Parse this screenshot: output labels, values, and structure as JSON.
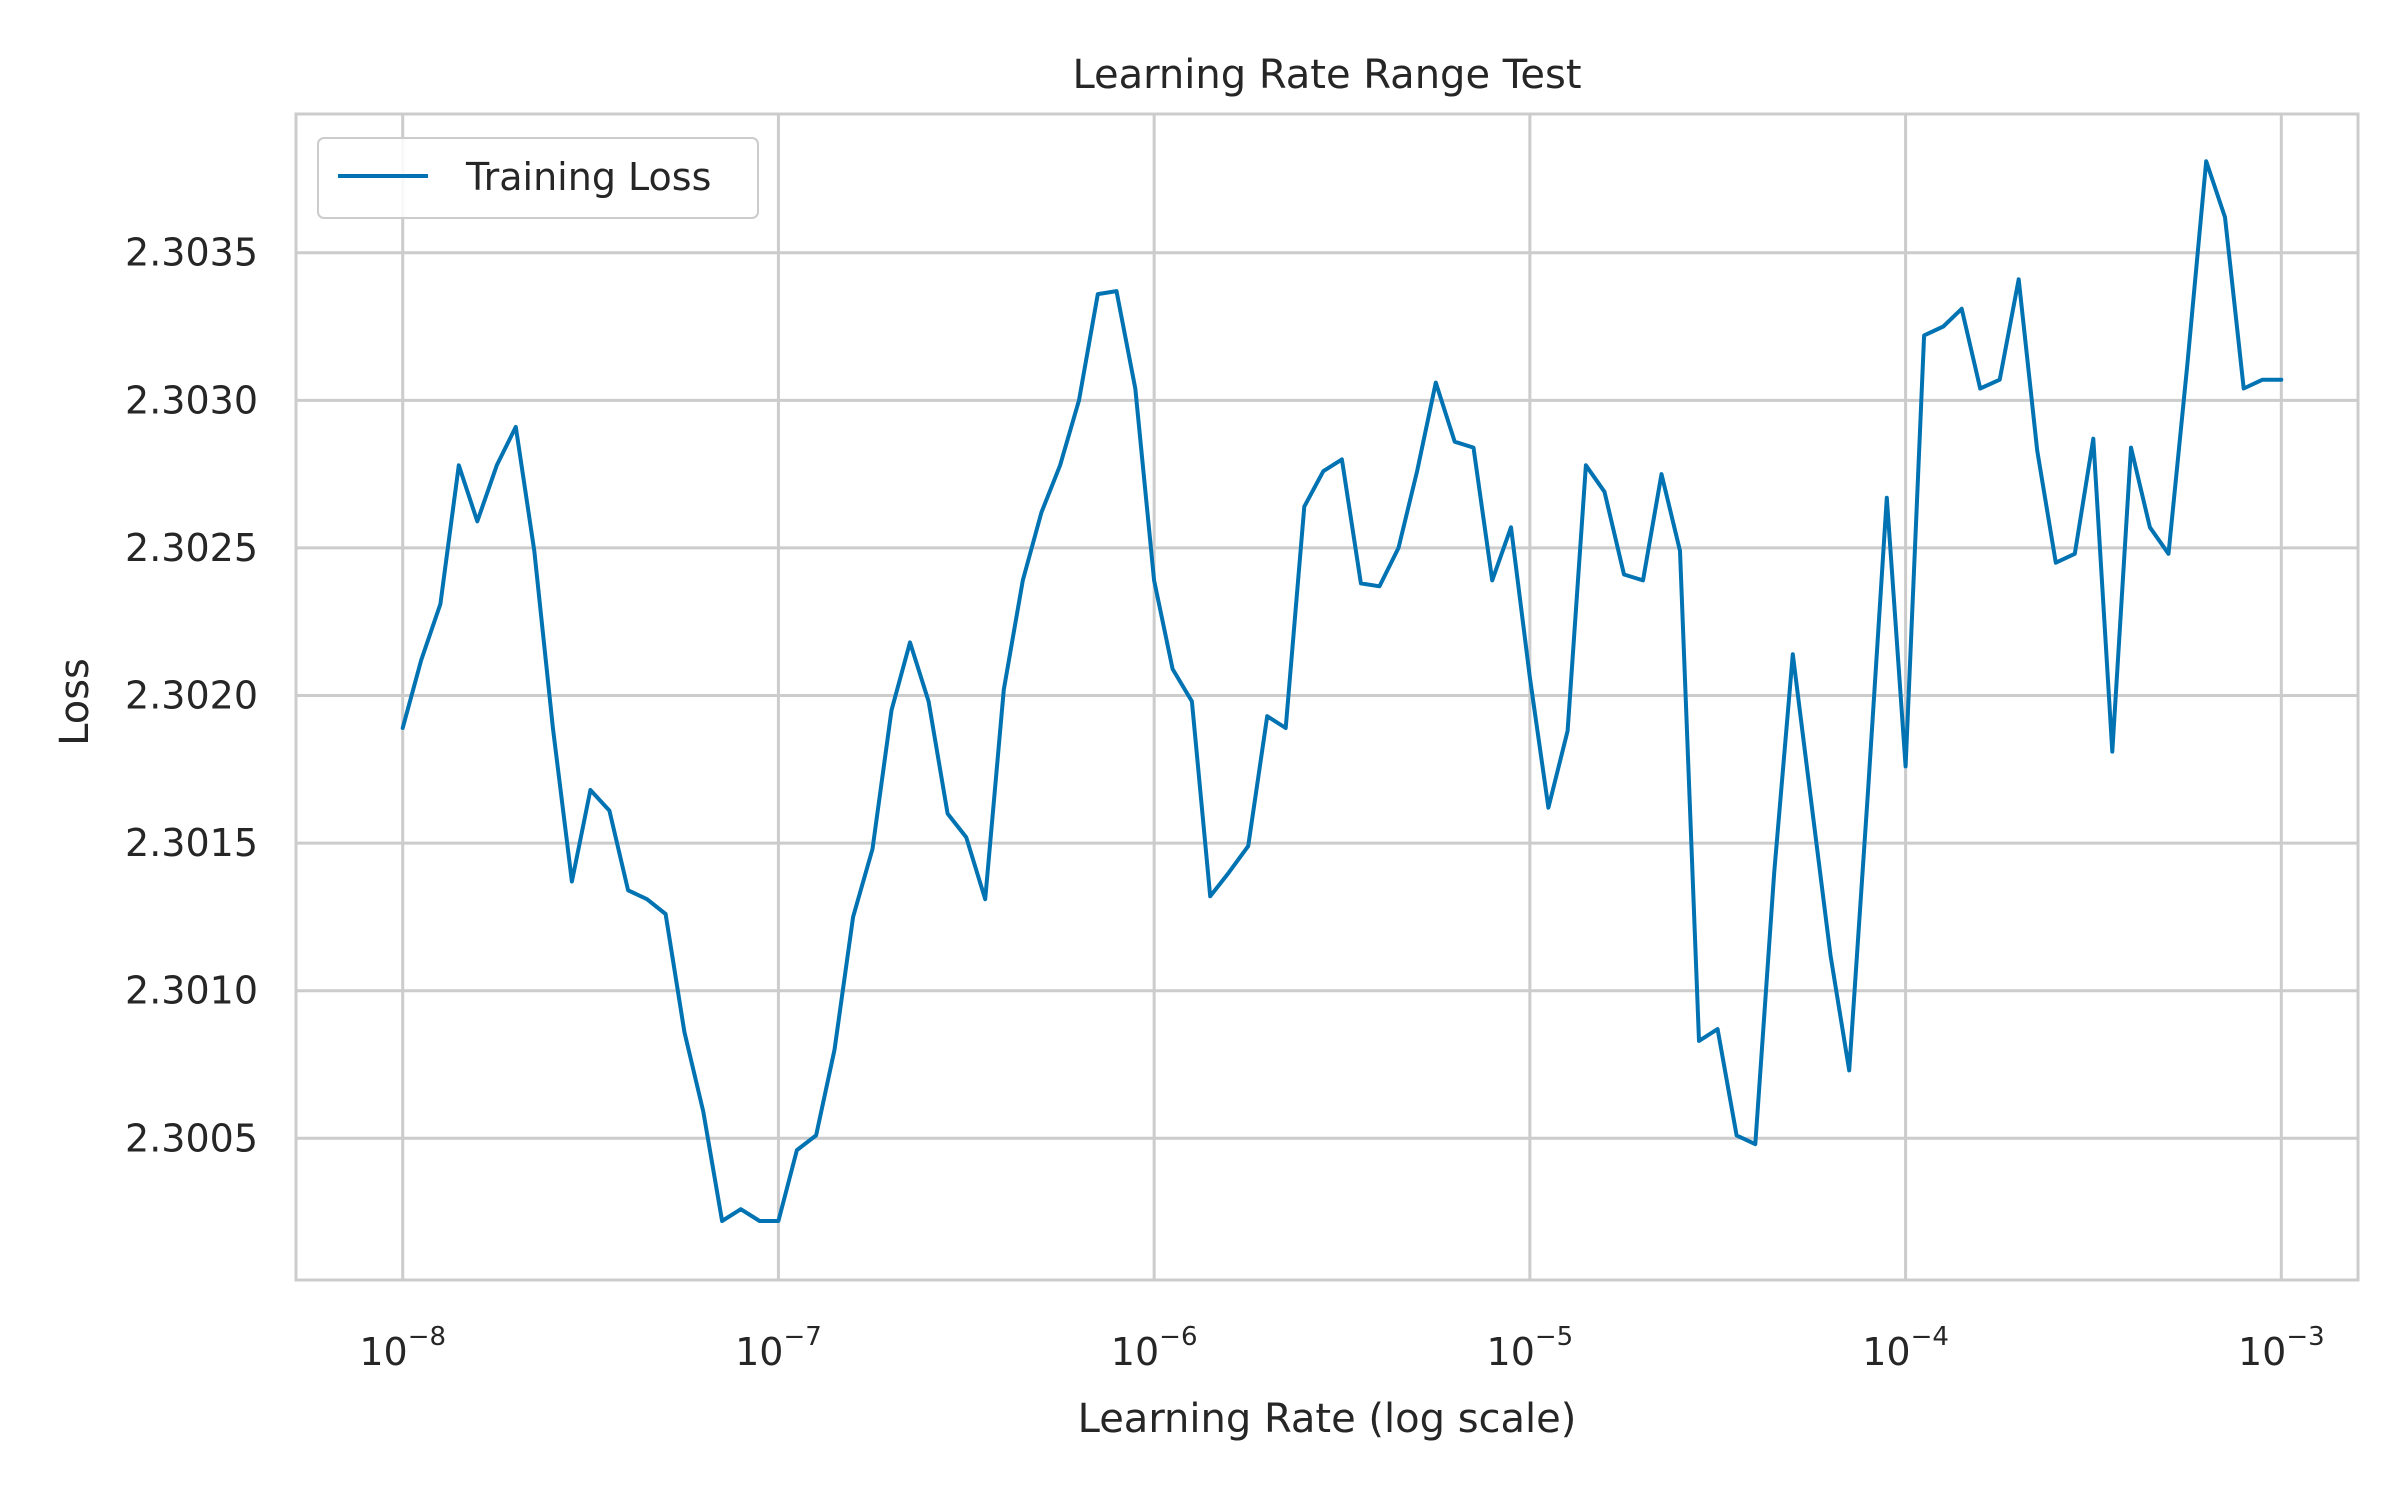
{
  "chart_data": {
    "type": "line",
    "title": "Learning Rate Range Test",
    "xlabel": "Learning Rate (log scale)",
    "ylabel": "Loss",
    "x_scale": "log",
    "xlim": [
      5.2e-09,
      0.0016
    ],
    "ylim": [
      2.30002,
      2.30397
    ],
    "grid": true,
    "legend_position": "top-left",
    "x_ticks": [
      {
        "value": 1e-08,
        "label": "10",
        "exponent": "−8"
      },
      {
        "value": 1e-07,
        "label": "10",
        "exponent": "−7"
      },
      {
        "value": 1e-06,
        "label": "10",
        "exponent": "−6"
      },
      {
        "value": 1e-05,
        "label": "10",
        "exponent": "−5"
      },
      {
        "value": 0.0001,
        "label": "10",
        "exponent": "−4"
      },
      {
        "value": 0.001,
        "label": "10",
        "exponent": "−3"
      }
    ],
    "y_ticks": [
      {
        "value": 2.3005,
        "label": "2.3005"
      },
      {
        "value": 2.301,
        "label": "2.3010"
      },
      {
        "value": 2.3015,
        "label": "2.3015"
      },
      {
        "value": 2.302,
        "label": "2.3020"
      },
      {
        "value": 2.3025,
        "label": "2.3025"
      },
      {
        "value": 2.303,
        "label": "2.3030"
      },
      {
        "value": 2.3035,
        "label": "2.3035"
      }
    ],
    "series": [
      {
        "name": "Training Loss",
        "color": "#0173b2",
        "x": [
          1e-08,
          1.12e-08,
          1.26e-08,
          1.41e-08,
          1.58e-08,
          1.78e-08,
          2e-08,
          2.24e-08,
          2.51e-08,
          2.82e-08,
          3.16e-08,
          3.55e-08,
          3.98e-08,
          4.47e-08,
          5.01e-08,
          5.62e-08,
          6.31e-08,
          7.08e-08,
          7.94e-08,
          8.91e-08,
          1e-07,
          1.12e-07,
          1.26e-07,
          1.41e-07,
          1.58e-07,
          1.78e-07,
          2e-07,
          2.24e-07,
          2.51e-07,
          2.82e-07,
          3.16e-07,
          3.55e-07,
          3.98e-07,
          4.47e-07,
          5.01e-07,
          5.62e-07,
          6.31e-07,
          7.08e-07,
          7.94e-07,
          8.91e-07,
          1e-06,
          1.12e-06,
          1.26e-06,
          1.41e-06,
          1.58e-06,
          1.78e-06,
          2e-06,
          2.24e-06,
          2.51e-06,
          2.82e-06,
          3.16e-06,
          3.55e-06,
          3.98e-06,
          4.47e-06,
          5.01e-06,
          5.62e-06,
          6.31e-06,
          7.08e-06,
          7.94e-06,
          8.91e-06,
          1e-05,
          1.12e-05,
          1.26e-05,
          1.41e-05,
          1.58e-05,
          1.78e-05,
          2e-05,
          2.24e-05,
          2.51e-05,
          2.82e-05,
          3.16e-05,
          3.55e-05,
          3.98e-05,
          4.47e-05,
          5.01e-05,
          5.62e-05,
          6.31e-05,
          7.08e-05,
          7.94e-05,
          8.91e-05,
          0.0001,
          0.000112,
          0.000126,
          0.000141,
          0.000158,
          0.000178,
          0.0002,
          0.000224,
          0.000251,
          0.000282,
          0.000316,
          0.000355,
          0.000398,
          0.000447,
          0.000501,
          0.000562,
          0.000631,
          0.000708,
          0.000794,
          0.000891,
          0.001
        ],
        "y": [
          2.30189,
          2.30212,
          2.30231,
          2.30278,
          2.30259,
          2.30278,
          2.30291,
          2.30249,
          2.30189,
          2.30137,
          2.30168,
          2.30161,
          2.30134,
          2.30131,
          2.30126,
          2.30086,
          2.30059,
          2.30022,
          2.30026,
          2.30022,
          2.30022,
          2.30046,
          2.30051,
          2.3008,
          2.30125,
          2.30148,
          2.30195,
          2.30218,
          2.30198,
          2.3016,
          2.30152,
          2.30131,
          2.30202,
          2.30239,
          2.30262,
          2.30278,
          2.303,
          2.30336,
          2.30337,
          2.30304,
          2.30239,
          2.30209,
          2.30198,
          2.30132,
          2.3014,
          2.30149,
          2.30193,
          2.30189,
          2.30264,
          2.30276,
          2.3028,
          2.30238,
          2.30237,
          2.3025,
          2.30276,
          2.30306,
          2.30286,
          2.30284,
          2.30239,
          2.30257,
          2.30206,
          2.30162,
          2.30188,
          2.30278,
          2.30269,
          2.30241,
          2.30239,
          2.30275,
          2.30249,
          2.30083,
          2.30087,
          2.30051,
          2.30048,
          2.3014,
          2.30214,
          2.30163,
          2.30112,
          2.30073,
          2.30167,
          2.30267,
          2.30176,
          2.30322,
          2.30325,
          2.30331,
          2.30304,
          2.30307,
          2.30341,
          2.30283,
          2.30245,
          2.30248,
          2.30287,
          2.30181,
          2.30284,
          2.30257,
          2.30248,
          2.30312,
          2.30381,
          2.30362,
          2.30304,
          2.30307,
          2.30307
        ]
      }
    ]
  }
}
